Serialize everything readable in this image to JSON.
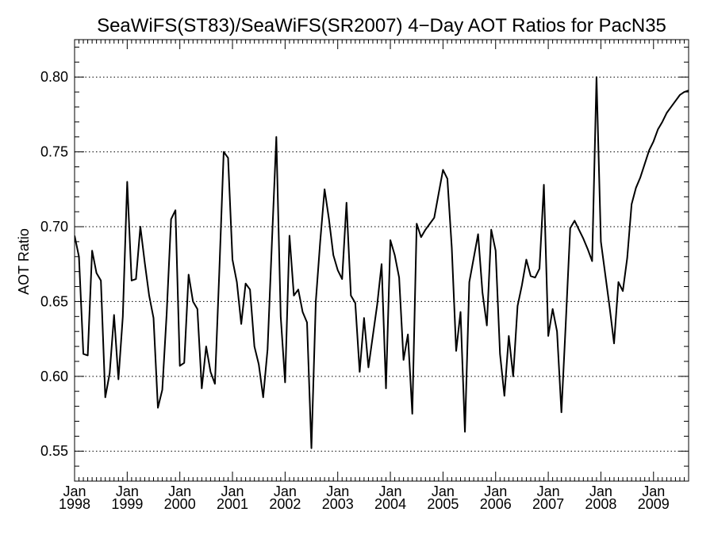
{
  "chart_data": {
    "type": "line",
    "title": "SeaWiFS(ST83)/SeaWiFS(SR2007) 4−Day AOT Ratios for PacN35",
    "xlabel": "",
    "ylabel": "AOT Ratio",
    "ylim": [
      0.53,
      0.825
    ],
    "xlim": [
      "1998-01",
      "2009-09"
    ],
    "yticks": [
      "0.55",
      "0.60",
      "0.65",
      "0.70",
      "0.75",
      "0.80"
    ],
    "xticks": [
      {
        "month": "Jan",
        "year": "1998"
      },
      {
        "month": "Jan",
        "year": "1999"
      },
      {
        "month": "Jan",
        "year": "2000"
      },
      {
        "month": "Jan",
        "year": "2001"
      },
      {
        "month": "Jan",
        "year": "2002"
      },
      {
        "month": "Jan",
        "year": "2003"
      },
      {
        "month": "Jan",
        "year": "2004"
      },
      {
        "month": "Jan",
        "year": "2005"
      },
      {
        "month": "Jan",
        "year": "2006"
      },
      {
        "month": "Jan",
        "year": "2007"
      },
      {
        "month": "Jan",
        "year": "2008"
      },
      {
        "month": "Jan",
        "year": "2009"
      }
    ],
    "grid": "horizontal dotted",
    "line_color": "#000000",
    "series": [
      {
        "x": [
          "1998-01",
          "1998-02",
          "1998-03",
          "1998-04",
          "1998-05",
          "1998-06",
          "1998-07",
          "1998-08",
          "1998-09",
          "1998-10",
          "1998-11",
          "1998-12",
          "1999-01",
          "1999-02",
          "1999-03",
          "1999-04",
          "1999-05",
          "1999-06",
          "1999-07",
          "1999-08",
          "1999-09",
          "1999-10",
          "1999-11",
          "1999-12",
          "2000-01",
          "2000-02",
          "2000-03",
          "2000-04",
          "2000-05",
          "2000-06",
          "2000-07",
          "2000-08",
          "2000-09",
          "2000-10",
          "2000-11",
          "2000-12",
          "2001-01",
          "2001-02",
          "2001-03",
          "2001-04",
          "2001-05",
          "2001-06",
          "2001-07",
          "2001-08",
          "2001-09",
          "2001-10",
          "2001-11",
          "2001-12",
          "2002-01",
          "2002-02",
          "2002-03",
          "2002-04",
          "2002-05",
          "2002-06",
          "2002-07",
          "2002-08",
          "2002-09",
          "2002-10",
          "2002-11",
          "2002-12",
          "2003-01",
          "2003-02",
          "2003-03",
          "2003-04",
          "2003-05",
          "2003-06",
          "2003-07",
          "2003-08",
          "2003-09",
          "2003-10",
          "2003-11",
          "2003-12",
          "2004-01",
          "2004-02",
          "2004-03",
          "2004-04",
          "2004-05",
          "2004-06",
          "2004-07",
          "2004-08",
          "2004-09",
          "2004-10",
          "2004-11",
          "2004-12",
          "2005-01",
          "2005-02",
          "2005-03",
          "2005-04",
          "2005-05",
          "2005-06",
          "2005-07",
          "2005-08",
          "2005-09",
          "2005-10",
          "2005-11",
          "2005-12",
          "2006-01",
          "2006-02",
          "2006-03",
          "2006-04",
          "2006-05",
          "2006-06",
          "2006-07",
          "2006-08",
          "2006-09",
          "2006-10",
          "2006-11",
          "2006-12",
          "2007-01",
          "2007-02",
          "2007-03",
          "2007-04",
          "2007-05",
          "2007-06",
          "2007-07",
          "2007-08",
          "2007-09",
          "2007-10",
          "2007-11",
          "2007-12",
          "2008-01",
          "2008-02",
          "2008-03",
          "2008-04",
          "2008-05",
          "2008-06",
          "2008-07",
          "2008-08",
          "2008-09",
          "2008-10",
          "2008-11",
          "2008-12",
          "2009-01",
          "2009-02",
          "2009-03",
          "2009-04",
          "2009-05",
          "2009-06",
          "2009-07",
          "2009-08",
          "2009-09"
        ],
        "values": [
          0.694,
          0.68,
          0.615,
          0.614,
          0.684,
          0.669,
          0.664,
          0.586,
          0.602,
          0.641,
          0.598,
          0.64,
          0.73,
          0.664,
          0.665,
          0.7,
          0.676,
          0.654,
          0.639,
          0.579,
          0.591,
          0.642,
          0.705,
          0.711,
          0.607,
          0.609,
          0.668,
          0.65,
          0.645,
          0.592,
          0.62,
          0.603,
          0.595,
          0.67,
          0.75,
          0.746,
          0.678,
          0.663,
          0.635,
          0.662,
          0.658,
          0.62,
          0.608,
          0.586,
          0.618,
          0.69,
          0.76,
          0.64,
          0.596,
          0.694,
          0.654,
          0.658,
          0.643,
          0.636,
          0.552,
          0.65,
          0.69,
          0.725,
          0.705,
          0.681,
          0.671,
          0.665,
          0.716,
          0.654,
          0.649,
          0.603,
          0.639,
          0.606,
          0.627,
          0.648,
          0.675,
          0.592,
          0.691,
          0.681,
          0.666,
          0.611,
          0.628,
          0.575,
          0.702,
          0.693,
          0.698,
          0.702,
          0.706,
          0.722,
          0.738,
          0.732,
          0.686,
          0.617,
          0.643,
          0.563,
          0.663,
          0.679,
          0.695,
          0.656,
          0.634,
          0.698,
          0.684,
          0.615,
          0.587,
          0.627,
          0.6,
          0.647,
          0.661,
          0.678,
          0.667,
          0.666,
          0.672,
          0.728,
          0.627,
          0.645,
          0.63,
          0.576,
          0.636,
          0.699,
          0.704,
          0.698,
          0.692,
          0.685,
          0.677,
          0.8,
          0.69,
          0.668,
          0.646,
          0.622,
          0.663,
          0.657,
          0.679,
          0.715,
          0.726,
          0.733,
          0.742,
          0.751,
          0.757,
          0.765,
          0.77,
          0.776,
          0.78,
          0.784,
          0.788,
          0.79,
          0.791
        ]
      }
    ]
  }
}
